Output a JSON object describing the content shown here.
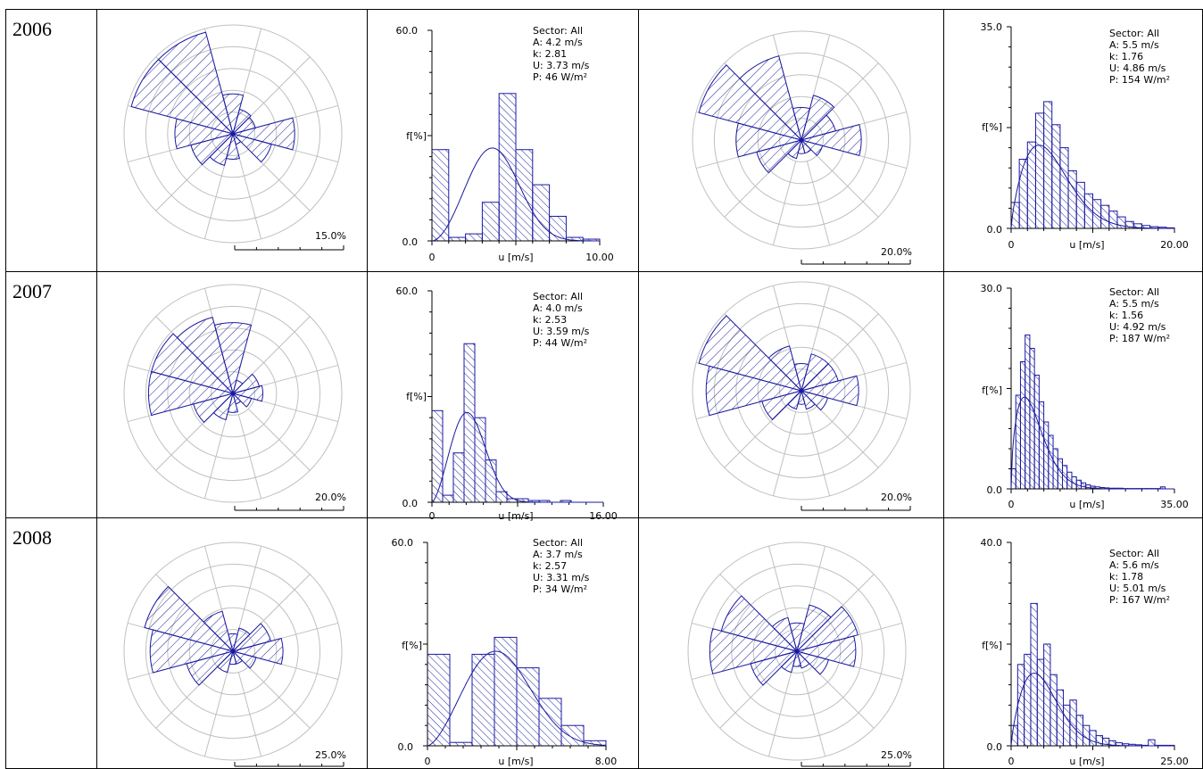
{
  "colors": {
    "series": "#1a1aa0",
    "grid": "#c0c0c0",
    "border": "#000000"
  },
  "rows": [
    {
      "year": "2006"
    },
    {
      "year": "2007"
    },
    {
      "year": "2008"
    }
  ],
  "chart_data": [
    {
      "type": "rose",
      "row": 0,
      "col": 0,
      "scale_label": "15.0%",
      "scale_max": 15,
      "sectors": [
        5.5,
        3.5,
        3.2,
        8.5,
        5.5,
        1.5,
        3.5,
        4.5,
        6.0,
        8.0,
        14.5,
        14.5
      ]
    },
    {
      "type": "histogram",
      "row": 0,
      "col": 1,
      "ylabel": "f[%]",
      "xlabel": "u [m/s]",
      "y_ticks": [
        "60.0",
        "0.0"
      ],
      "ylim": [
        0,
        60
      ],
      "x_ticks": [
        "0",
        "10.00"
      ],
      "xlim": [
        0,
        10
      ],
      "stats": [
        "Sector: All",
        "A: 4.2 m/s",
        "k: 2.81",
        "U: 3.73 m/s",
        "P: 46 W/m²"
      ],
      "bin_width": 1,
      "values": [
        26,
        1,
        2,
        11,
        42,
        26,
        16,
        7,
        1,
        0.5
      ],
      "weibull": {
        "A": 4.2,
        "k": 2.81
      }
    },
    {
      "type": "rose",
      "row": 0,
      "col": 2,
      "scale_label": "20.0%",
      "scale_max": 20,
      "sectors": [
        6.0,
        8.5,
        6.5,
        11.0,
        4.0,
        2.5,
        2.5,
        3.5,
        8.5,
        12.0,
        19.5,
        16.0
      ]
    },
    {
      "type": "histogram",
      "row": 0,
      "col": 3,
      "ylabel": "f[%]",
      "xlabel": "u [m/s]",
      "y_ticks": [
        "35.0",
        "0.0"
      ],
      "ylim": [
        0,
        35
      ],
      "x_ticks": [
        "0",
        "20.00"
      ],
      "xlim": [
        0,
        20
      ],
      "stats": [
        "Sector: All",
        "A: 5.5 m/s",
        "k: 1.76",
        "U: 4.86 m/s",
        "P: 154 W/m²"
      ],
      "bin_width": 1,
      "values": [
        4.5,
        12,
        15,
        20,
        22,
        18,
        14,
        10,
        8,
        6,
        5,
        4,
        3,
        2,
        1.2,
        0.8,
        0.5,
        0.3,
        0.2,
        0.1
      ],
      "weibull": {
        "A": 5.5,
        "k": 1.76
      }
    },
    {
      "type": "rose",
      "row": 1,
      "col": 0,
      "scale_label": "20.0%",
      "scale_max": 20,
      "sectors": [
        13.0,
        2.5,
        5.0,
        5.5,
        3.5,
        2.0,
        3.5,
        5.0,
        7.5,
        15.5,
        15.5,
        14.5
      ]
    },
    {
      "type": "histogram",
      "row": 1,
      "col": 1,
      "ylabel": "f[%]",
      "xlabel": "u [m/s]",
      "y_ticks": [
        "60.0",
        "0.0"
      ],
      "ylim": [
        0,
        60
      ],
      "x_ticks": [
        "0",
        "16.00"
      ],
      "xlim": [
        0,
        16
      ],
      "stats": [
        "Sector: All",
        "A: 4.0 m/s",
        "k: 2.53",
        "U: 3.59 m/s",
        "P: 44 W/m²"
      ],
      "bin_width": 1,
      "values": [
        26,
        2,
        14,
        45,
        24,
        12,
        3,
        1,
        1,
        0.5,
        0.5,
        0,
        0.5,
        0,
        0,
        0
      ],
      "weibull": {
        "A": 4.0,
        "k": 2.53
      }
    },
    {
      "type": "rose",
      "row": 1,
      "col": 2,
      "scale_label": "20.0%",
      "scale_max": 20,
      "sectors": [
        5.0,
        7.0,
        7.0,
        10.5,
        5.0,
        3.5,
        2.5,
        3.5,
        7.5,
        17.5,
        19.5,
        8.5
      ]
    },
    {
      "type": "histogram",
      "row": 1,
      "col": 3,
      "ylabel": "f[%]",
      "xlabel": "u [m/s]",
      "y_ticks": [
        "30.0",
        "0.0"
      ],
      "ylim": [
        0,
        30
      ],
      "x_ticks": [
        "0",
        "35.00"
      ],
      "xlim": [
        0,
        35
      ],
      "stats": [
        "Sector: All",
        "A: 5.5 m/s",
        "k: 1.56",
        "U: 4.92 m/s",
        "P: 187 W/m²"
      ],
      "bin_width": 1,
      "values": [
        3,
        14,
        19,
        23,
        21,
        17,
        13,
        10,
        8,
        6,
        4.5,
        3.5,
        2.5,
        1.8,
        1.3,
        0.9,
        0.6,
        0.4,
        0.3,
        0.2,
        0.15,
        0.1,
        0.1,
        0.1,
        0.05,
        0.05,
        0.05,
        0.05,
        0.05,
        0.05,
        0.05,
        0.05,
        0.3,
        0,
        0
      ],
      "weibull": {
        "A": 5.5,
        "k": 1.56
      }
    },
    {
      "type": "rose",
      "row": 2,
      "col": 0,
      "scale_label": "25.0%",
      "scale_max": 25,
      "sectors": [
        4.0,
        5.5,
        9.0,
        11.5,
        5.5,
        3.0,
        3.0,
        5.0,
        11.0,
        19.0,
        21.0,
        9.5
      ]
    },
    {
      "type": "histogram",
      "row": 2,
      "col": 1,
      "ylabel": "f[%]",
      "xlabel": "u [m/s]",
      "y_ticks": [
        "60.0",
        "0.0"
      ],
      "ylim": [
        0,
        60
      ],
      "x_ticks": [
        "0",
        "8.00"
      ],
      "xlim": [
        0,
        8
      ],
      "stats": [
        "Sector: All",
        "A: 3.7 m/s",
        "k: 2.57",
        "U: 3.31 m/s",
        "P: 34 W/m²"
      ],
      "bin_width": 1,
      "values": [
        27,
        1,
        27,
        32,
        23,
        14,
        6,
        1.5
      ],
      "weibull": {
        "A": 3.7,
        "k": 2.57
      }
    },
    {
      "type": "rose",
      "row": 2,
      "col": 2,
      "scale_label": "25.0%",
      "scale_max": 25,
      "sectors": [
        6.5,
        11.0,
        14.5,
        13.5,
        7.5,
        4.0,
        3.5,
        5.0,
        11.0,
        20.0,
        18.0,
        8.0
      ]
    },
    {
      "type": "histogram",
      "row": 2,
      "col": 3,
      "ylabel": "f[%]",
      "xlabel": "u [m/s]",
      "y_ticks": [
        "40.0",
        "0.0"
      ],
      "ylim": [
        0,
        40
      ],
      "x_ticks": [
        "0",
        "25.00"
      ],
      "xlim": [
        0,
        25
      ],
      "stats": [
        "Sector: All",
        "A: 5.6 m/s",
        "k: 1.78",
        "U: 5.01 m/s",
        "P: 167 W/m²"
      ],
      "bin_width": 1,
      "values": [
        4,
        16,
        18,
        28,
        17,
        20,
        14,
        11,
        8,
        9,
        6,
        4,
        3,
        2,
        1.5,
        1,
        0.6,
        0.4,
        0.3,
        0.2,
        0.1,
        1.2,
        0.1,
        0.1,
        0.1
      ],
      "weibull": {
        "A": 5.6,
        "k": 1.78
      }
    }
  ]
}
